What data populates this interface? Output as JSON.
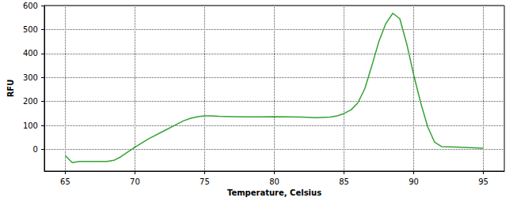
{
  "chart_data": {
    "type": "line",
    "x_label": "Temperature, Celsius",
    "y_label": "RFU",
    "x": [
      65,
      65.5,
      66,
      67,
      68,
      68.5,
      69,
      69.5,
      70,
      71,
      72,
      73,
      73.5,
      74,
      74.5,
      75,
      75.5,
      76,
      77,
      78,
      79,
      80,
      81,
      82,
      83,
      84,
      84.5,
      85,
      85.5,
      86,
      86.5,
      87,
      87.5,
      88,
      88.5,
      89,
      89.5,
      90,
      90.5,
      91,
      91.5,
      92,
      93,
      94,
      95
    ],
    "values": [
      -25,
      -55,
      -50,
      -50,
      -50,
      -45,
      -30,
      -10,
      10,
      45,
      75,
      105,
      120,
      130,
      137,
      140,
      140,
      138,
      137,
      136,
      136,
      137,
      136,
      135,
      133,
      135,
      140,
      150,
      165,
      195,
      255,
      350,
      450,
      525,
      568,
      545,
      440,
      310,
      195,
      95,
      30,
      12,
      10,
      8,
      5
    ],
    "color": "#33a333",
    "xlim": [
      63.5,
      96.5
    ],
    "xticks": [
      65,
      70,
      75,
      80,
      85,
      90,
      95
    ],
    "ylim": [
      -90,
      600
    ],
    "yticks": [
      0,
      100,
      200,
      300,
      400,
      500,
      600
    ],
    "grid": true
  }
}
